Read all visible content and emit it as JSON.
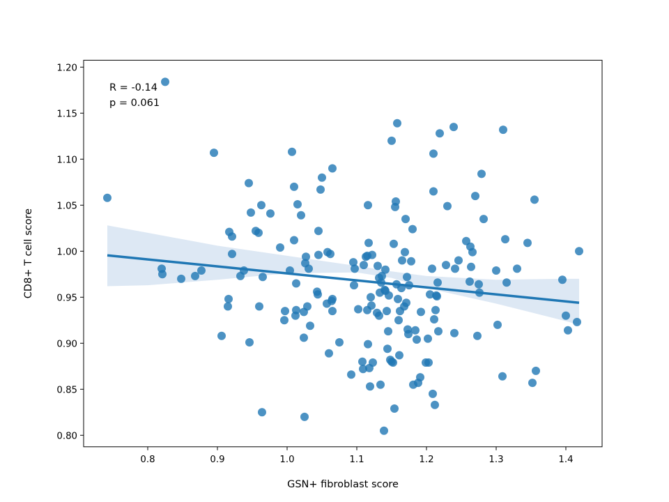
{
  "chart_data": {
    "type": "scatter",
    "title": "",
    "xlabel": "GSN+ fibroblast score",
    "ylabel": "CD8+ T cell score",
    "xlim": [
      0.708,
      1.452
    ],
    "ylim": [
      0.7875,
      1.2075
    ],
    "xticks": [
      0.8,
      0.9,
      1.0,
      1.1,
      1.2,
      1.3,
      1.4
    ],
    "xtick_labels": [
      "0.8",
      "0.9",
      "1.0",
      "1.1",
      "1.2",
      "1.3",
      "1.4"
    ],
    "yticks": [
      0.8,
      0.85,
      0.9,
      0.95,
      1.0,
      1.05,
      1.1,
      1.15,
      1.2
    ],
    "ytick_labels": [
      "0.80",
      "0.85",
      "0.90",
      "0.95",
      "1.00",
      "1.05",
      "1.10",
      "1.15",
      "1.20"
    ],
    "grid": false,
    "annotations": [
      "R = -0.14",
      "p = 0.061"
    ],
    "colors": {
      "points": "#1f77b4",
      "line": "#1f77b4",
      "band": "#c6d9ec"
    },
    "regression": {
      "x": [
        0.742,
        1.419
      ],
      "y": [
        0.9955,
        0.944
      ]
    },
    "ci_band": {
      "x": [
        0.742,
        0.8,
        0.9,
        1.0,
        1.1,
        1.15,
        1.2,
        1.3,
        1.4,
        1.419
      ],
      "lower": [
        0.962,
        0.963,
        0.969,
        0.976,
        0.977,
        0.971,
        0.96,
        0.943,
        0.924,
        0.92
      ],
      "upper": [
        1.028,
        1.02,
        1.006,
        0.995,
        0.984,
        0.978,
        0.973,
        0.969,
        0.97,
        0.97
      ]
    },
    "points": [
      [
        0.742,
        1.058
      ],
      [
        0.82,
        0.981
      ],
      [
        0.821,
        0.975
      ],
      [
        0.825,
        1.184
      ],
      [
        0.848,
        0.97
      ],
      [
        0.868,
        0.973
      ],
      [
        0.877,
        0.979
      ],
      [
        0.895,
        1.107
      ],
      [
        0.906,
        0.908
      ],
      [
        0.915,
        0.94
      ],
      [
        0.916,
        0.948
      ],
      [
        0.917,
        1.021
      ],
      [
        0.921,
        1.016
      ],
      [
        0.921,
        0.997
      ],
      [
        0.933,
        0.973
      ],
      [
        0.938,
        0.979
      ],
      [
        0.945,
        1.074
      ],
      [
        0.946,
        0.901
      ],
      [
        0.948,
        1.042
      ],
      [
        0.955,
        1.022
      ],
      [
        0.959,
        1.02
      ],
      [
        0.96,
        0.94
      ],
      [
        0.963,
        1.05
      ],
      [
        0.964,
        0.825
      ],
      [
        0.965,
        0.972
      ],
      [
        0.976,
        1.041
      ],
      [
        0.99,
        1.004
      ],
      [
        0.996,
        0.925
      ],
      [
        0.997,
        0.935
      ],
      [
        1.004,
        0.979
      ],
      [
        1.007,
        1.108
      ],
      [
        1.01,
        1.07
      ],
      [
        1.01,
        1.012
      ],
      [
        1.012,
        0.93
      ],
      [
        1.013,
        0.936
      ],
      [
        1.013,
        0.965
      ],
      [
        1.015,
        1.051
      ],
      [
        1.02,
        1.039
      ],
      [
        1.024,
        0.906
      ],
      [
        1.024,
        0.934
      ],
      [
        1.025,
        0.82
      ],
      [
        1.026,
        0.987
      ],
      [
        1.027,
        0.994
      ],
      [
        1.029,
        0.94
      ],
      [
        1.031,
        0.981
      ],
      [
        1.033,
        0.919
      ],
      [
        1.043,
        0.956
      ],
      [
        1.044,
        0.953
      ],
      [
        1.045,
        0.996
      ],
      [
        1.045,
        1.022
      ],
      [
        1.048,
        1.067
      ],
      [
        1.05,
        1.08
      ],
      [
        1.057,
        0.943
      ],
      [
        1.058,
        0.999
      ],
      [
        1.06,
        0.889
      ],
      [
        1.062,
        0.997
      ],
      [
        1.064,
        0.946
      ],
      [
        1.065,
        0.948
      ],
      [
        1.065,
        0.935
      ],
      [
        1.065,
        1.09
      ],
      [
        1.075,
        0.901
      ],
      [
        1.092,
        0.866
      ],
      [
        1.095,
        0.988
      ],
      [
        1.096,
        0.963
      ],
      [
        1.097,
        0.981
      ],
      [
        1.102,
        0.937
      ],
      [
        1.108,
        0.88
      ],
      [
        1.109,
        0.872
      ],
      [
        1.11,
        0.985
      ],
      [
        1.113,
        0.994
      ],
      [
        1.115,
        0.936
      ],
      [
        1.115,
        0.995
      ],
      [
        1.116,
        0.899
      ],
      [
        1.116,
        1.05
      ],
      [
        1.117,
        1.009
      ],
      [
        1.118,
        0.873
      ],
      [
        1.119,
        0.853
      ],
      [
        1.12,
        0.95
      ],
      [
        1.121,
        0.941
      ],
      [
        1.122,
        0.996
      ],
      [
        1.123,
        0.879
      ],
      [
        1.129,
        0.933
      ],
      [
        1.13,
        0.984
      ],
      [
        1.132,
        0.971
      ],
      [
        1.132,
        0.93
      ],
      [
        1.133,
        0.955
      ],
      [
        1.134,
        0.855
      ],
      [
        1.135,
        0.966
      ],
      [
        1.136,
        0.973
      ],
      [
        1.139,
        0.805
      ],
      [
        1.14,
        0.958
      ],
      [
        1.141,
        0.957
      ],
      [
        1.141,
        0.98
      ],
      [
        1.143,
        0.935
      ],
      [
        1.144,
        0.894
      ],
      [
        1.145,
        0.913
      ],
      [
        1.146,
        0.952
      ],
      [
        1.148,
        0.882
      ],
      [
        1.15,
        1.12
      ],
      [
        1.15,
        0.88
      ],
      [
        1.152,
        0.879
      ],
      [
        1.153,
        1.008
      ],
      [
        1.154,
        0.829
      ],
      [
        1.155,
        1.048
      ],
      [
        1.156,
        1.054
      ],
      [
        1.157,
        0.964
      ],
      [
        1.158,
        1.139
      ],
      [
        1.159,
        0.948
      ],
      [
        1.16,
        0.925
      ],
      [
        1.161,
        0.887
      ],
      [
        1.162,
        0.935
      ],
      [
        1.164,
        0.96
      ],
      [
        1.165,
        0.99
      ],
      [
        1.168,
        0.94
      ],
      [
        1.169,
        0.999
      ],
      [
        1.17,
        1.035
      ],
      [
        1.171,
        0.944
      ],
      [
        1.172,
        0.972
      ],
      [
        1.173,
        0.915
      ],
      [
        1.174,
        0.91
      ],
      [
        1.175,
        0.963
      ],
      [
        1.178,
        0.989
      ],
      [
        1.18,
        1.024
      ],
      [
        1.181,
        0.855
      ],
      [
        1.184,
        0.914
      ],
      [
        1.186,
        0.904
      ],
      [
        1.188,
        0.857
      ],
      [
        1.191,
        0.863
      ],
      [
        1.192,
        0.934
      ],
      [
        1.199,
        0.879
      ],
      [
        1.202,
        0.905
      ],
      [
        1.203,
        0.879
      ],
      [
        1.205,
        0.953
      ],
      [
        1.208,
        0.981
      ],
      [
        1.209,
        0.845
      ],
      [
        1.21,
        1.065
      ],
      [
        1.21,
        1.106
      ],
      [
        1.211,
        0.926
      ],
      [
        1.212,
        0.833
      ],
      [
        1.213,
        0.936
      ],
      [
        1.214,
        0.952
      ],
      [
        1.215,
        0.951
      ],
      [
        1.216,
        0.966
      ],
      [
        1.217,
        0.913
      ],
      [
        1.219,
        1.128
      ],
      [
        1.228,
        0.985
      ],
      [
        1.23,
        1.049
      ],
      [
        1.239,
        1.135
      ],
      [
        1.24,
        0.911
      ],
      [
        1.241,
        0.981
      ],
      [
        1.246,
        0.99
      ],
      [
        1.257,
        1.011
      ],
      [
        1.262,
        0.967
      ],
      [
        1.263,
        1.005
      ],
      [
        1.264,
        0.983
      ],
      [
        1.266,
        0.999
      ],
      [
        1.27,
        1.06
      ],
      [
        1.273,
        0.908
      ],
      [
        1.275,
        0.964
      ],
      [
        1.276,
        0.955
      ],
      [
        1.279,
        1.084
      ],
      [
        1.282,
        1.035
      ],
      [
        1.3,
        0.979
      ],
      [
        1.302,
        0.92
      ],
      [
        1.309,
        0.864
      ],
      [
        1.31,
        1.132
      ],
      [
        1.313,
        1.013
      ],
      [
        1.315,
        0.966
      ],
      [
        1.33,
        0.981
      ],
      [
        1.345,
        1.009
      ],
      [
        1.352,
        0.857
      ],
      [
        1.355,
        1.056
      ],
      [
        1.357,
        0.87
      ],
      [
        1.395,
        0.969
      ],
      [
        1.4,
        0.93
      ],
      [
        1.403,
        0.914
      ],
      [
        1.416,
        0.923
      ],
      [
        1.419,
        1.0
      ]
    ]
  }
}
